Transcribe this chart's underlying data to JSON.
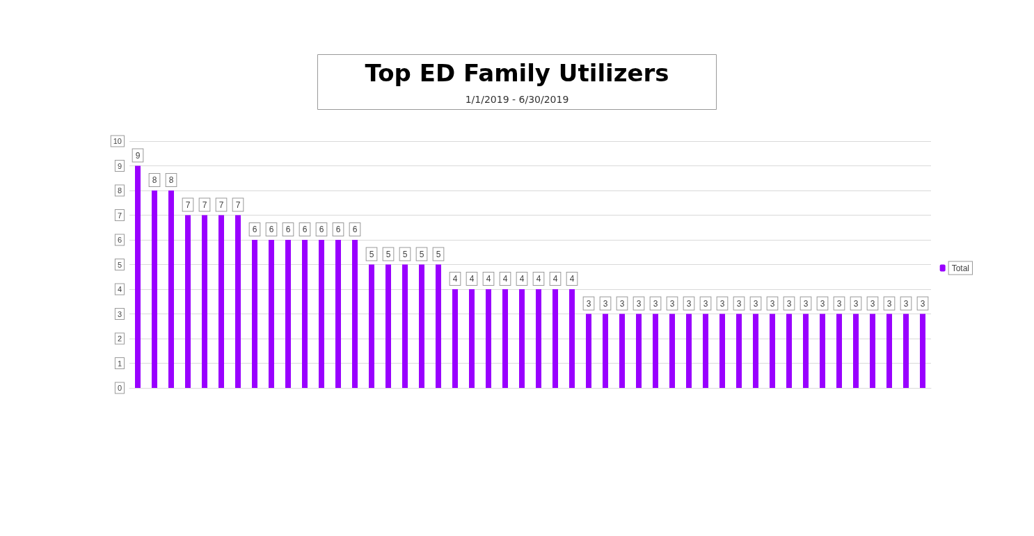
{
  "chart_data": {
    "type": "bar",
    "title": "Top ED Family Utilizers",
    "subtitle": "1/1/2019 - 6/30/2019",
    "categories": [
      null,
      null,
      null,
      null,
      null,
      null,
      null,
      null,
      null,
      null,
      null,
      null,
      null,
      null,
      null,
      null,
      null,
      null,
      null,
      null,
      null,
      null,
      null,
      null,
      null,
      null,
      null,
      null,
      null,
      null,
      null,
      null,
      null,
      null,
      null,
      null,
      null,
      null,
      null,
      null,
      null,
      null,
      null,
      null,
      null,
      null,
      null,
      null
    ],
    "series": [
      {
        "name": "Total",
        "color": "#9900ff",
        "values": [
          9,
          8,
          8,
          7,
          7,
          7,
          7,
          6,
          6,
          6,
          6,
          6,
          6,
          6,
          5,
          5,
          5,
          5,
          5,
          4,
          4,
          4,
          4,
          4,
          4,
          4,
          4,
          3,
          3,
          3,
          3,
          3,
          3,
          3,
          3,
          3,
          3,
          3,
          3,
          3,
          3,
          3,
          3,
          3,
          3,
          3,
          3,
          3
        ]
      }
    ],
    "ylim": [
      0,
      10
    ],
    "yticks": [
      0,
      1,
      2,
      3,
      4,
      5,
      6,
      7,
      8,
      9,
      10
    ],
    "grid": "y",
    "legend": "right",
    "data_labels": true
  }
}
